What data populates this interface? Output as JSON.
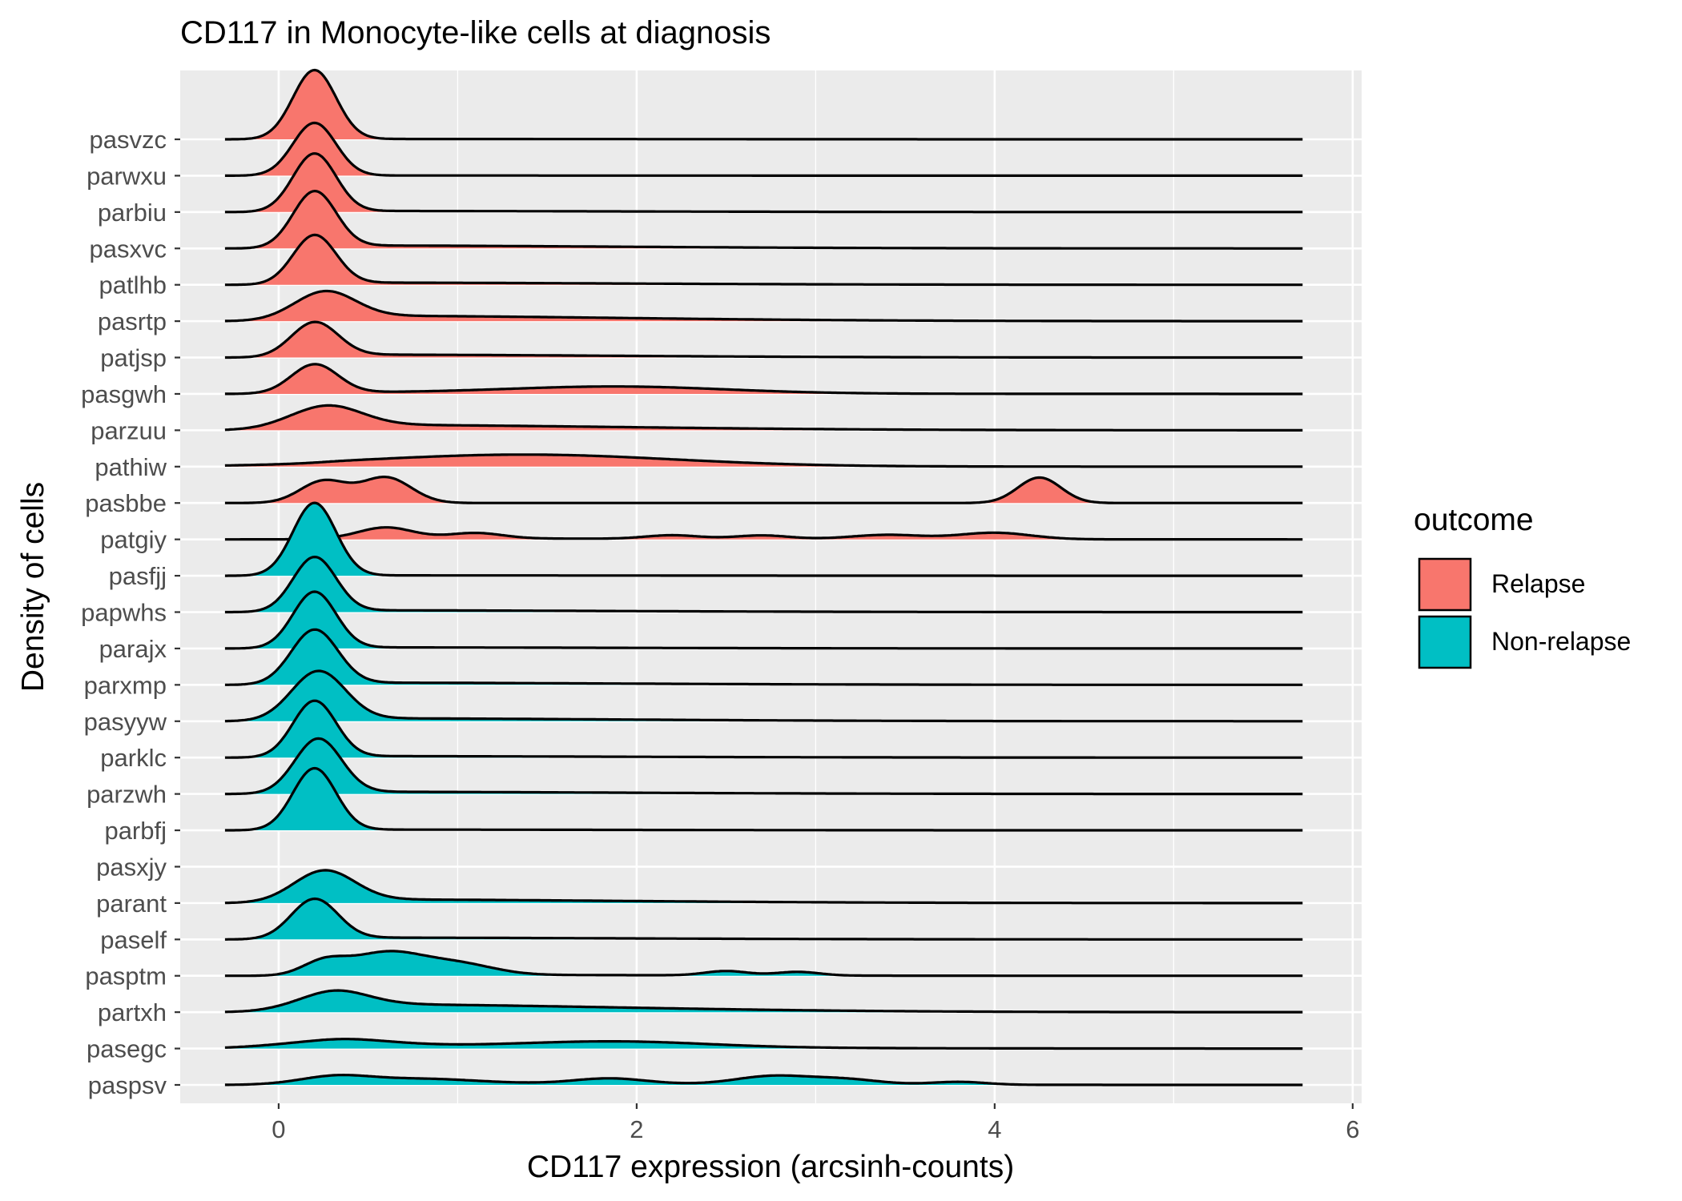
{
  "chart_data": {
    "type": "ridgeline",
    "title": "CD117 in Monocyte-like cells at diagnosis",
    "xlabel": "CD117 expression (arcsinh-counts)",
    "ylabel": "Density of cells",
    "xlim": [
      -0.55,
      6.05
    ],
    "x_ticks": [
      0,
      2,
      4,
      6
    ],
    "grid": true,
    "legend": {
      "title": "outcome",
      "placement": "right",
      "entries": [
        {
          "label": "Relapse",
          "color": "#F8766D"
        },
        {
          "label": "Non-relapse",
          "color": "#00BFC4"
        }
      ]
    },
    "colors": {
      "Relapse": "#F8766D",
      "Non-relapse": "#00BFC4",
      "panel": "#EBEBEB",
      "grid": "#FFFFFF"
    },
    "series": [
      {
        "name": "pasvzc",
        "outcome": "Relapse",
        "peaks": [
          [
            0.2,
            1.9,
            0.12
          ]
        ],
        "tail": 0.01
      },
      {
        "name": "parwxu",
        "outcome": "Relapse",
        "peaks": [
          [
            0.2,
            1.45,
            0.12
          ]
        ],
        "tail": 0.005
      },
      {
        "name": "parbiu",
        "outcome": "Relapse",
        "peaks": [
          [
            0.2,
            1.6,
            0.12
          ]
        ],
        "tail": 0.03
      },
      {
        "name": "pasxvc",
        "outcome": "Relapse",
        "peaks": [
          [
            0.2,
            1.55,
            0.12
          ]
        ],
        "tail": 0.08
      },
      {
        "name": "patlhb",
        "outcome": "Relapse",
        "peaks": [
          [
            0.2,
            1.35,
            0.12
          ]
        ],
        "tail": 0.06
      },
      {
        "name": "pasrtp",
        "outcome": "Relapse",
        "peaks": [
          [
            0.25,
            0.75,
            0.17
          ]
        ],
        "tail": 0.15
      },
      {
        "name": "patjsp",
        "outcome": "Relapse",
        "peaks": [
          [
            0.2,
            0.95,
            0.13
          ]
        ],
        "tail": 0.08
      },
      {
        "name": "pasgwh",
        "outcome": "Relapse",
        "peaks": [
          [
            0.2,
            0.8,
            0.13
          ],
          [
            1.9,
            0.18,
            0.6
          ]
        ],
        "tail": 0.04
      },
      {
        "name": "parzuu",
        "outcome": "Relapse",
        "peaks": [
          [
            0.25,
            0.6,
            0.2
          ]
        ],
        "tail": 0.15
      },
      {
        "name": "pathiw",
        "outcome": "Relapse",
        "peaks": [
          [
            1.4,
            0.3,
            0.8
          ]
        ],
        "tail": 0.04
      },
      {
        "name": "pasbbe",
        "outcome": "Relapse",
        "peaks": [
          [
            0.25,
            0.6,
            0.13
          ],
          [
            0.6,
            0.7,
            0.14
          ],
          [
            4.25,
            0.7,
            0.12
          ]
        ],
        "tail": 0.0
      },
      {
        "name": "patgiy",
        "outcome": "Relapse",
        "peaks": [
          [
            0.6,
            0.3,
            0.15
          ],
          [
            1.1,
            0.15,
            0.15
          ],
          [
            2.2,
            0.1,
            0.15
          ],
          [
            2.7,
            0.1,
            0.15
          ],
          [
            3.4,
            0.12,
            0.2
          ],
          [
            4.0,
            0.18,
            0.2
          ]
        ],
        "tail": 0.03
      },
      {
        "name": "pasfjj",
        "outcome": "Non-relapse",
        "peaks": [
          [
            0.2,
            2.0,
            0.12
          ]
        ],
        "tail": 0.01
      },
      {
        "name": "papwhs",
        "outcome": "Non-relapse",
        "peaks": [
          [
            0.2,
            1.5,
            0.12
          ]
        ],
        "tail": 0.05
      },
      {
        "name": "parajx",
        "outcome": "Non-relapse",
        "peaks": [
          [
            0.2,
            1.55,
            0.12
          ]
        ],
        "tail": 0.03
      },
      {
        "name": "parxmp",
        "outcome": "Non-relapse",
        "peaks": [
          [
            0.2,
            1.5,
            0.13
          ]
        ],
        "tail": 0.06
      },
      {
        "name": "pasyyw",
        "outcome": "Non-relapse",
        "peaks": [
          [
            0.22,
            1.35,
            0.15
          ]
        ],
        "tail": 0.08
      },
      {
        "name": "parklc",
        "outcome": "Non-relapse",
        "peaks": [
          [
            0.2,
            1.55,
            0.12
          ]
        ],
        "tail": 0.04
      },
      {
        "name": "parzwh",
        "outcome": "Non-relapse",
        "peaks": [
          [
            0.22,
            1.5,
            0.13
          ]
        ],
        "tail": 0.06
      },
      {
        "name": "parbfj",
        "outcome": "Non-relapse",
        "peaks": [
          [
            0.2,
            1.7,
            0.12
          ]
        ],
        "tail": 0.02
      },
      {
        "name": "pasxjy",
        "outcome": "Non-relapse",
        "peaks": [],
        "tail": 0.0
      },
      {
        "name": "parant",
        "outcome": "Non-relapse",
        "peaks": [
          [
            0.25,
            0.85,
            0.17
          ]
        ],
        "tail": 0.1
      },
      {
        "name": "paself",
        "outcome": "Non-relapse",
        "peaks": [
          [
            0.2,
            1.1,
            0.13
          ]
        ],
        "tail": 0.05
      },
      {
        "name": "pasptm",
        "outcome": "Non-relapse",
        "peaks": [
          [
            0.25,
            0.35,
            0.12
          ],
          [
            0.6,
            0.6,
            0.2
          ],
          [
            1.0,
            0.3,
            0.2
          ],
          [
            2.5,
            0.12,
            0.12
          ],
          [
            2.9,
            0.1,
            0.12
          ]
        ],
        "tail": 0.03
      },
      {
        "name": "partxh",
        "outcome": "Non-relapse",
        "peaks": [
          [
            0.28,
            0.45,
            0.2
          ]
        ],
        "tail": 0.22
      },
      {
        "name": "pasegc",
        "outcome": "Non-relapse",
        "peaks": [
          [
            0.3,
            0.2,
            0.3
          ],
          [
            1.9,
            0.15,
            0.5
          ]
        ],
        "tail": 0.08
      },
      {
        "name": "paspsv",
        "outcome": "Non-relapse",
        "peaks": [
          [
            0.3,
            0.2,
            0.2
          ],
          [
            0.8,
            0.12,
            0.3
          ],
          [
            1.85,
            0.15,
            0.2
          ],
          [
            2.75,
            0.22,
            0.2
          ],
          [
            3.15,
            0.15,
            0.2
          ],
          [
            3.8,
            0.08,
            0.15
          ]
        ],
        "tail": 0.05
      }
    ]
  }
}
